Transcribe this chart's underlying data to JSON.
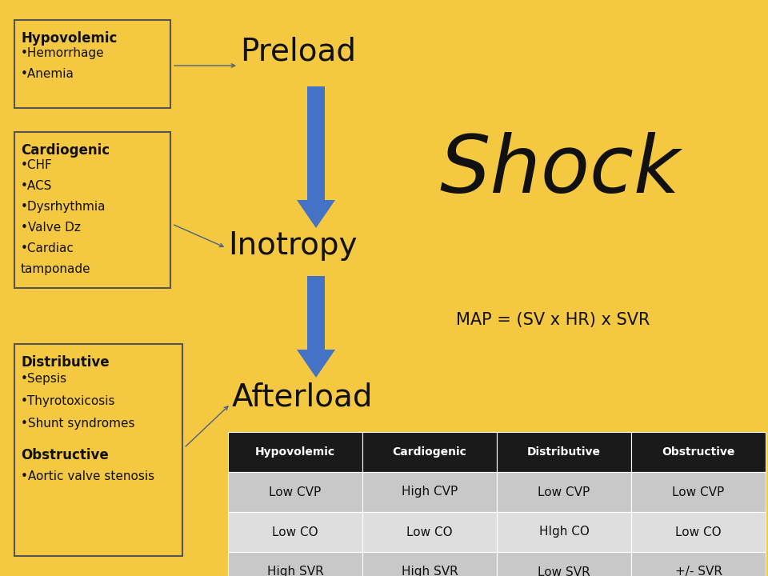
{
  "bg_color": "#F5C842",
  "arrow_color": "#4472C4",
  "box_border_color": "#555555",
  "box_bg": "#F5C842",
  "text_color": "#111111",
  "hypo_title": "Hypovolemic",
  "hypo_bullets": [
    "•Hemorrhage",
    "•Anemia"
  ],
  "cardio_title": "Cardiogenic",
  "cardio_bullets": [
    "•CHF",
    "•ACS",
    "•Dysrhythmia",
    "•Valve Dz",
    "•Cardiac",
    "tamponade"
  ],
  "distrib_title": "Distributive",
  "distrib_bullets": [
    "•Sepsis",
    "•Thyrotoxicosis",
    "•Shunt syndromes"
  ],
  "obstructive_title": "Obstructive",
  "obstructive_bullets": [
    "•Aortic valve stenosis"
  ],
  "preload_label": "Preload",
  "inotropy_label": "Inotropy",
  "afterload_label": "Afterload",
  "shock_label": "Shock",
  "map_label": "MAP = (SV x HR) x SVR",
  "table_header": [
    "Hypovolemic",
    "Cardiogenic",
    "Distributive",
    "Obstructive"
  ],
  "table_rows": [
    [
      "Low CVP",
      "High CVP",
      "Low CVP",
      "Low CVP"
    ],
    [
      "Low CO",
      "Low CO",
      "HIgh CO",
      "Low CO"
    ],
    [
      "High SVR",
      "High SVR",
      "Low SVR",
      "+/- SVR"
    ]
  ],
  "table_header_bg": "#1a1a1a",
  "table_header_fg": "#ffffff",
  "table_row1_bg": "#c8c8c8",
  "table_row2_bg": "#dedede"
}
